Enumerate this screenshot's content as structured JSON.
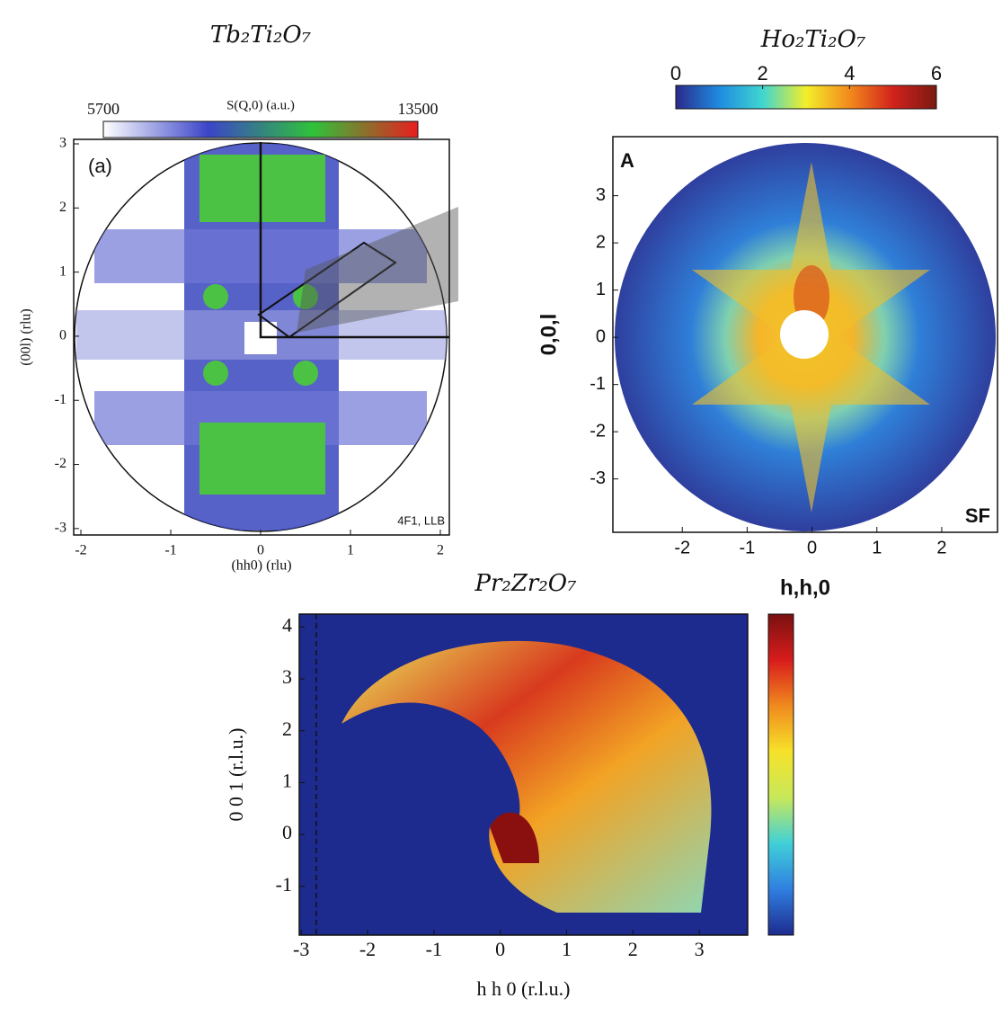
{
  "chart_data": [
    {
      "type": "heatmap",
      "title": "Tb₂Ti₂O₇",
      "xlabel": "(hh0) (rlu)",
      "ylabel": "(00l) (rlu)",
      "xlim": [
        -2.08,
        2.1
      ],
      "ylim": [
        -3.1,
        3.07
      ],
      "xticks": [
        -2,
        -1,
        0,
        1,
        2
      ],
      "yticks": [
        -3,
        -2,
        -1,
        0,
        1,
        2,
        3
      ],
      "colorbar": {
        "label": "S(Q,0) (a.u.)",
        "lim": [
          5700,
          13500
        ],
        "ticks": [
          5700,
          13500
        ],
        "colors": [
          "#ffffff",
          "#3b45c8",
          "#2fc23a",
          "#e81e1e"
        ]
      },
      "annotations": [
        "(a)",
        "4F1, LLB"
      ]
    },
    {
      "type": "heatmap",
      "title": "Ho₂Ti₂O₇",
      "xlabel": "h,h,0",
      "ylabel": "0,0,l",
      "xlim": [
        -3.07,
        2.86
      ],
      "ylim": [
        -4.13,
        4.25
      ],
      "xticks": [
        -2,
        -1,
        0,
        1,
        2
      ],
      "yticks": [
        -3,
        -2,
        -1,
        0,
        1,
        2,
        3
      ],
      "colorbar": {
        "lim": [
          0,
          6
        ],
        "ticks": [
          0,
          2,
          4,
          6
        ],
        "colors": [
          "#2a2a8c",
          "#1f8be0",
          "#3fd6d0",
          "#f4ee2a",
          "#f28a1c",
          "#d2221c",
          "#7a1a12"
        ]
      },
      "annotations": [
        "A",
        "SF"
      ]
    },
    {
      "type": "heatmap",
      "title": "Pr₂Zr₂O₇",
      "xlabel": "h h 0 (r.l.u.)",
      "ylabel": "0 0 1 (r.l.u.)",
      "xlim": [
        -3.03,
        3.73
      ],
      "ylim": [
        -1.94,
        4.25
      ],
      "xticks": [
        -3,
        -2,
        -1,
        0,
        1,
        2,
        3
      ],
      "yticks": [
        -1,
        0,
        1,
        2,
        3,
        4
      ],
      "colorbar": {
        "colors": [
          "#1d2b8e",
          "#2f7fe0",
          "#40d0d8",
          "#c8e85a",
          "#f6e22a",
          "#f08a1e",
          "#d81c1c",
          "#7a1010"
        ]
      }
    }
  ]
}
